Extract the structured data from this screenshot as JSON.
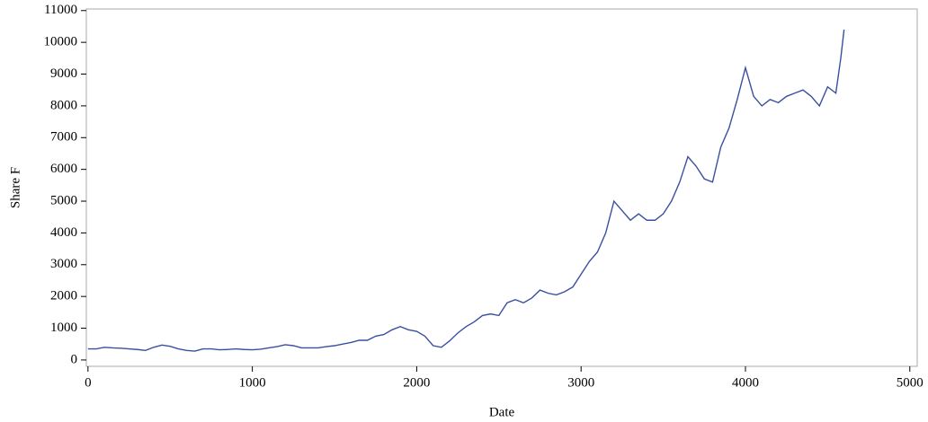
{
  "chart_data": {
    "type": "line",
    "x_label": "Date",
    "y_label": "Share F",
    "x": [
      0,
      50,
      100,
      150,
      200,
      250,
      300,
      350,
      400,
      450,
      500,
      550,
      600,
      650,
      700,
      750,
      800,
      850,
      900,
      950,
      1000,
      1050,
      1100,
      1150,
      1200,
      1250,
      1300,
      1350,
      1400,
      1450,
      1500,
      1550,
      1600,
      1650,
      1700,
      1750,
      1800,
      1850,
      1900,
      1950,
      2000,
      2050,
      2100,
      2150,
      2200,
      2250,
      2300,
      2350,
      2400,
      2450,
      2500,
      2550,
      2600,
      2650,
      2700,
      2750,
      2800,
      2850,
      2900,
      2950,
      3000,
      3050,
      3100,
      3150,
      3200,
      3250,
      3300,
      3350,
      3400,
      3450,
      3500,
      3550,
      3600,
      3650,
      3700,
      3750,
      3800,
      3850,
      3900,
      3950,
      4000,
      4050,
      4100,
      4150,
      4200,
      4250,
      4300,
      4350,
      4400,
      4450,
      4500,
      4550,
      4580,
      4600
    ],
    "series": [
      {
        "color": "#3b4fa0",
        "values": [
          350,
          350,
          400,
          380,
          370,
          350,
          330,
          300,
          400,
          470,
          430,
          350,
          300,
          280,
          350,
          350,
          320,
          330,
          350,
          330,
          320,
          340,
          380,
          420,
          480,
          450,
          380,
          380,
          380,
          420,
          450,
          500,
          550,
          620,
          620,
          750,
          800,
          950,
          1050,
          950,
          900,
          750,
          450,
          400,
          600,
          850,
          1050,
          1200,
          1400,
          1450,
          1400,
          1800,
          1900,
          1800,
          1950,
          2200,
          2100,
          2050,
          2150,
          2300,
          2700,
          3100,
          3400,
          4000,
          5000,
          4700,
          4400,
          4600,
          4400,
          4400,
          4600,
          5000,
          5600,
          6400,
          6100,
          5700,
          5600,
          6700,
          7300,
          8200,
          9200,
          8300,
          8000,
          8200,
          8100,
          8300,
          8400,
          8500,
          8300,
          8000,
          8600,
          8400,
          9500,
          10400
        ]
      }
    ],
    "xlim": [
      -10,
      5045
    ],
    "ylim": [
      -200,
      11050
    ],
    "xticks": [
      0,
      1000,
      2000,
      3000,
      4000,
      5000
    ],
    "yticks": [
      0,
      1000,
      2000,
      3000,
      4000,
      5000,
      6000,
      7000,
      8000,
      9000,
      10000,
      11000
    ]
  }
}
